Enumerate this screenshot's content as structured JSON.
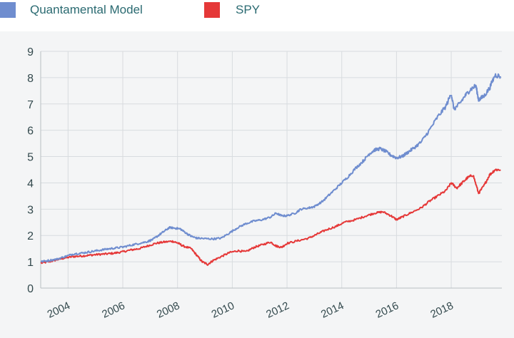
{
  "legend": [
    {
      "label": "Quantamental Model",
      "color": "#6f8dcf"
    },
    {
      "label": "SPY",
      "color": "#e53838"
    }
  ],
  "chart_data": {
    "type": "line",
    "title": "",
    "xlabel": "",
    "ylabel": "",
    "xlim": [
      2003.0,
      2019.85
    ],
    "ylim": [
      0,
      9
    ],
    "yticks": [
      0,
      1,
      2,
      3,
      4,
      5,
      6,
      7,
      8,
      9
    ],
    "xticks": [
      2004,
      2006,
      2008,
      2010,
      2012,
      2014,
      2016,
      2018
    ],
    "ytick_labels": [
      "0",
      "1",
      "2",
      "3",
      "4",
      "5",
      "6",
      "7",
      "8",
      "9"
    ],
    "xtick_labels": [
      "2004",
      "2006",
      "2008",
      "2010",
      "2012",
      "2014",
      "2016",
      "2018"
    ],
    "grid": true,
    "legend_position": "top-left",
    "series": [
      {
        "name": "Quantamental Model",
        "color": "#6f8dcf",
        "points": [
          [
            2003.0,
            1.0
          ],
          [
            2003.3,
            1.05
          ],
          [
            2003.6,
            1.1
          ],
          [
            2003.9,
            1.2
          ],
          [
            2004.2,
            1.3
          ],
          [
            2004.5,
            1.33
          ],
          [
            2004.8,
            1.38
          ],
          [
            2005.1,
            1.43
          ],
          [
            2005.4,
            1.48
          ],
          [
            2005.7,
            1.52
          ],
          [
            2006.0,
            1.56
          ],
          [
            2006.3,
            1.63
          ],
          [
            2006.6,
            1.7
          ],
          [
            2006.9,
            1.77
          ],
          [
            2007.1,
            1.85
          ],
          [
            2007.3,
            2.0
          ],
          [
            2007.5,
            2.15
          ],
          [
            2007.7,
            2.3
          ],
          [
            2007.9,
            2.28
          ],
          [
            2008.1,
            2.25
          ],
          [
            2008.3,
            2.1
          ],
          [
            2008.5,
            1.97
          ],
          [
            2008.7,
            1.9
          ],
          [
            2009.0,
            1.88
          ],
          [
            2009.3,
            1.87
          ],
          [
            2009.6,
            1.9
          ],
          [
            2009.9,
            2.1
          ],
          [
            2010.2,
            2.3
          ],
          [
            2010.5,
            2.45
          ],
          [
            2010.8,
            2.55
          ],
          [
            2011.1,
            2.6
          ],
          [
            2011.4,
            2.7
          ],
          [
            2011.6,
            2.85
          ],
          [
            2011.8,
            2.75
          ],
          [
            2012.0,
            2.75
          ],
          [
            2012.3,
            2.85
          ],
          [
            2012.5,
            3.0
          ],
          [
            2012.8,
            3.05
          ],
          [
            2013.0,
            3.1
          ],
          [
            2013.3,
            3.3
          ],
          [
            2013.6,
            3.6
          ],
          [
            2013.9,
            3.9
          ],
          [
            2014.2,
            4.2
          ],
          [
            2014.5,
            4.55
          ],
          [
            2014.8,
            4.85
          ],
          [
            2015.0,
            5.1
          ],
          [
            2015.2,
            5.25
          ],
          [
            2015.4,
            5.3
          ],
          [
            2015.6,
            5.2
          ],
          [
            2015.8,
            5.05
          ],
          [
            2016.0,
            4.95
          ],
          [
            2016.2,
            5.0
          ],
          [
            2016.4,
            5.15
          ],
          [
            2016.6,
            5.3
          ],
          [
            2016.9,
            5.55
          ],
          [
            2017.2,
            6.0
          ],
          [
            2017.5,
            6.5
          ],
          [
            2017.8,
            6.9
          ],
          [
            2018.0,
            7.4
          ],
          [
            2018.1,
            6.8
          ],
          [
            2018.3,
            7.0
          ],
          [
            2018.5,
            7.3
          ],
          [
            2018.7,
            7.55
          ],
          [
            2018.9,
            7.7
          ],
          [
            2019.0,
            7.15
          ],
          [
            2019.2,
            7.3
          ],
          [
            2019.4,
            7.6
          ],
          [
            2019.6,
            8.1
          ],
          [
            2019.8,
            8.05
          ]
        ]
      },
      {
        "name": "SPY",
        "color": "#e53838",
        "points": [
          [
            2003.0,
            0.95
          ],
          [
            2003.3,
            1.0
          ],
          [
            2003.6,
            1.08
          ],
          [
            2003.9,
            1.15
          ],
          [
            2004.2,
            1.2
          ],
          [
            2004.5,
            1.22
          ],
          [
            2004.8,
            1.25
          ],
          [
            2005.1,
            1.28
          ],
          [
            2005.4,
            1.3
          ],
          [
            2005.7,
            1.33
          ],
          [
            2006.0,
            1.38
          ],
          [
            2006.3,
            1.45
          ],
          [
            2006.6,
            1.5
          ],
          [
            2006.9,
            1.6
          ],
          [
            2007.2,
            1.7
          ],
          [
            2007.5,
            1.75
          ],
          [
            2007.8,
            1.78
          ],
          [
            2008.0,
            1.72
          ],
          [
            2008.2,
            1.6
          ],
          [
            2008.5,
            1.5
          ],
          [
            2008.7,
            1.25
          ],
          [
            2008.9,
            1.0
          ],
          [
            2009.1,
            0.9
          ],
          [
            2009.3,
            1.05
          ],
          [
            2009.6,
            1.2
          ],
          [
            2009.9,
            1.35
          ],
          [
            2010.2,
            1.42
          ],
          [
            2010.5,
            1.38
          ],
          [
            2010.8,
            1.55
          ],
          [
            2011.1,
            1.65
          ],
          [
            2011.4,
            1.75
          ],
          [
            2011.6,
            1.6
          ],
          [
            2011.8,
            1.55
          ],
          [
            2012.0,
            1.7
          ],
          [
            2012.4,
            1.8
          ],
          [
            2012.8,
            1.9
          ],
          [
            2013.1,
            2.05
          ],
          [
            2013.4,
            2.2
          ],
          [
            2013.8,
            2.35
          ],
          [
            2014.1,
            2.5
          ],
          [
            2014.5,
            2.6
          ],
          [
            2014.9,
            2.75
          ],
          [
            2015.2,
            2.85
          ],
          [
            2015.5,
            2.9
          ],
          [
            2015.8,
            2.75
          ],
          [
            2016.0,
            2.6
          ],
          [
            2016.2,
            2.7
          ],
          [
            2016.5,
            2.85
          ],
          [
            2016.9,
            3.05
          ],
          [
            2017.2,
            3.3
          ],
          [
            2017.5,
            3.5
          ],
          [
            2017.8,
            3.7
          ],
          [
            2018.0,
            4.0
          ],
          [
            2018.2,
            3.8
          ],
          [
            2018.4,
            4.0
          ],
          [
            2018.6,
            4.2
          ],
          [
            2018.8,
            4.3
          ],
          [
            2019.0,
            3.6
          ],
          [
            2019.2,
            3.9
          ],
          [
            2019.4,
            4.3
          ],
          [
            2019.6,
            4.5
          ],
          [
            2019.8,
            4.5
          ]
        ]
      }
    ]
  }
}
